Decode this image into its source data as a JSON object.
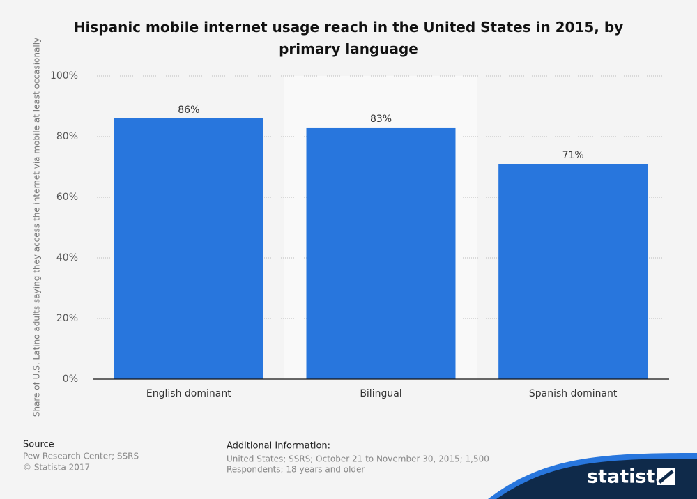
{
  "chart_data": {
    "type": "bar",
    "title": "Hispanic mobile internet usage reach in the United States in 2015, by primary language",
    "y_label": "Share of U.S. Latino adults saying they access the internet via mobile at least occasionally",
    "categories": [
      "English dominant",
      "Bilingual",
      "Spanish dominant"
    ],
    "values": [
      86,
      83,
      71
    ],
    "value_labels": [
      "86%",
      "83%",
      "71%"
    ],
    "color": "#2876dd",
    "ylim": [
      0,
      100
    ],
    "yticks": [
      {
        "value": 0,
        "label": "0%"
      },
      {
        "value": 20,
        "label": "20%"
      },
      {
        "value": 40,
        "label": "40%"
      },
      {
        "value": 60,
        "label": "60%"
      },
      {
        "value": 80,
        "label": "80%"
      },
      {
        "value": 100,
        "label": "100%"
      }
    ],
    "grid": true
  },
  "footer": {
    "source_title": "Source",
    "source_lines": [
      "Pew Research Center; SSRS",
      "© Statista 2017"
    ],
    "additional_title": "Additional Information:",
    "additional_lines": [
      "United States; SSRS; October 21 to November 30, 2015; 1,500",
      "Respondents; 18 years and older"
    ],
    "logo": "statista"
  }
}
